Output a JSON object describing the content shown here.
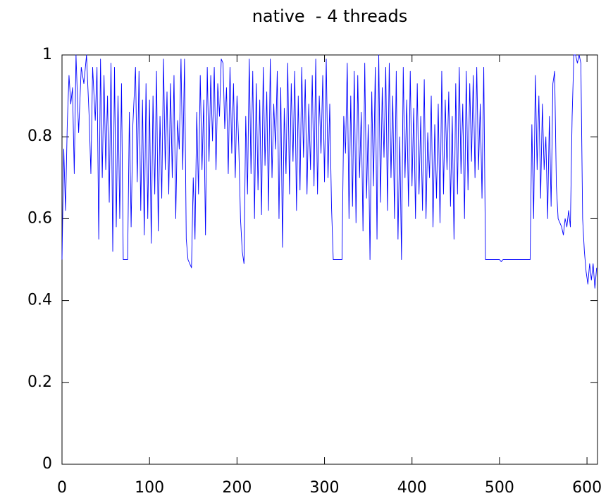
{
  "chart_data": {
    "type": "line",
    "title": "native  - 4 threads",
    "xlim": [
      0,
      612
    ],
    "ylim": [
      0,
      1
    ],
    "xticks": [
      0,
      100,
      200,
      300,
      400,
      500,
      600
    ],
    "yticks": [
      0,
      0.2,
      0.4,
      0.6,
      0.8,
      1
    ],
    "color": "#0000ff",
    "x": [
      0,
      2,
      4,
      6,
      8,
      10,
      12,
      14,
      16,
      19,
      22,
      25,
      28,
      31,
      33,
      35,
      38,
      40,
      42,
      44,
      46,
      48,
      50,
      52,
      54,
      56,
      58,
      60,
      62,
      64,
      66,
      68,
      70,
      75,
      77,
      79,
      81,
      84,
      86,
      88,
      90,
      92,
      94,
      96,
      98,
      100,
      102,
      104,
      106,
      108,
      110,
      112,
      114,
      116,
      118,
      120,
      122,
      124,
      126,
      128,
      130,
      132,
      134,
      136,
      138,
      140,
      142,
      144,
      146,
      148,
      150,
      152,
      154,
      156,
      158,
      160,
      162,
      164,
      166,
      168,
      170,
      172,
      174,
      176,
      178,
      180,
      182,
      184,
      186,
      188,
      190,
      192,
      194,
      196,
      198,
      200,
      202,
      204,
      206,
      208,
      210,
      212,
      214,
      216,
      218,
      220,
      222,
      224,
      226,
      228,
      230,
      232,
      234,
      236,
      238,
      240,
      242,
      244,
      246,
      248,
      250,
      252,
      254,
      256,
      258,
      260,
      262,
      264,
      266,
      268,
      270,
      272,
      274,
      276,
      278,
      280,
      282,
      284,
      286,
      288,
      290,
      292,
      294,
      296,
      298,
      300,
      302,
      304,
      306,
      308,
      310,
      320,
      322,
      324,
      326,
      328,
      330,
      332,
      334,
      336,
      338,
      340,
      342,
      344,
      346,
      348,
      350,
      352,
      354,
      356,
      358,
      360,
      362,
      364,
      366,
      368,
      370,
      372,
      374,
      376,
      378,
      380,
      382,
      384,
      386,
      388,
      390,
      392,
      394,
      396,
      398,
      400,
      402,
      404,
      406,
      408,
      410,
      412,
      414,
      416,
      418,
      420,
      422,
      424,
      426,
      428,
      430,
      432,
      434,
      436,
      438,
      440,
      442,
      444,
      446,
      448,
      450,
      452,
      454,
      456,
      458,
      460,
      462,
      464,
      466,
      468,
      470,
      472,
      474,
      476,
      478,
      480,
      482,
      484,
      500,
      502,
      504,
      520,
      535,
      537,
      539,
      541,
      543,
      545,
      547,
      549,
      551,
      553,
      555,
      557,
      559,
      561,
      563,
      565,
      567,
      569,
      571,
      573,
      575,
      577,
      579,
      581,
      583,
      585,
      587,
      589,
      591,
      593,
      595,
      597,
      599,
      601,
      603,
      605,
      607,
      609,
      611
    ],
    "values": [
      0.5,
      0.77,
      0.62,
      0.83,
      0.95,
      0.88,
      0.92,
      0.71,
      1.0,
      0.81,
      0.97,
      0.93,
      1.0,
      0.85,
      0.71,
      0.97,
      0.84,
      0.97,
      0.55,
      0.99,
      0.7,
      0.95,
      0.72,
      0.9,
      0.64,
      0.98,
      0.52,
      0.97,
      0.58,
      0.9,
      0.6,
      0.93,
      0.5,
      0.5,
      0.86,
      0.58,
      0.83,
      0.97,
      0.69,
      0.96,
      0.62,
      0.89,
      0.56,
      0.93,
      0.6,
      0.89,
      0.54,
      0.9,
      0.66,
      0.96,
      0.57,
      0.85,
      0.65,
      0.99,
      0.72,
      0.91,
      0.66,
      0.93,
      0.7,
      0.95,
      0.6,
      0.84,
      0.77,
      0.99,
      0.72,
      0.99,
      0.55,
      0.5,
      0.49,
      0.48,
      0.7,
      0.55,
      0.86,
      0.66,
      0.95,
      0.72,
      0.89,
      0.56,
      0.97,
      0.74,
      0.95,
      0.79,
      0.97,
      0.72,
      0.93,
      0.85,
      0.99,
      0.98,
      0.82,
      0.92,
      0.71,
      0.97,
      0.76,
      0.93,
      0.7,
      0.9,
      0.78,
      0.6,
      0.52,
      0.49,
      0.85,
      0.66,
      0.99,
      0.71,
      0.96,
      0.6,
      0.93,
      0.67,
      0.89,
      0.61,
      0.97,
      0.73,
      0.91,
      0.62,
      0.99,
      0.7,
      0.88,
      0.77,
      0.96,
      0.6,
      0.92,
      0.53,
      0.87,
      0.71,
      0.98,
      0.66,
      0.93,
      0.74,
      0.96,
      0.62,
      0.9,
      0.67,
      0.97,
      0.75,
      0.94,
      0.66,
      0.88,
      0.72,
      0.95,
      0.68,
      0.99,
      0.66,
      0.9,
      0.76,
      0.95,
      0.69,
      0.99,
      0.7,
      0.88,
      0.63,
      0.5,
      0.5,
      0.85,
      0.76,
      0.98,
      0.6,
      0.9,
      0.63,
      0.96,
      0.59,
      0.95,
      0.7,
      0.86,
      0.57,
      0.98,
      0.65,
      0.83,
      0.5,
      0.91,
      0.68,
      0.97,
      0.55,
      1.0,
      0.64,
      0.92,
      0.75,
      0.97,
      0.62,
      0.98,
      0.7,
      0.9,
      0.6,
      0.96,
      0.55,
      0.8,
      0.5,
      0.97,
      0.7,
      0.89,
      0.63,
      0.96,
      0.68,
      0.87,
      0.6,
      0.93,
      0.66,
      0.85,
      0.62,
      0.94,
      0.6,
      0.81,
      0.7,
      0.9,
      0.58,
      0.83,
      0.65,
      0.88,
      0.59,
      0.96,
      0.66,
      0.89,
      0.72,
      0.91,
      0.63,
      0.85,
      0.55,
      0.93,
      0.66,
      0.97,
      0.71,
      0.88,
      0.6,
      0.96,
      0.67,
      0.93,
      0.74,
      0.95,
      0.7,
      0.97,
      0.72,
      0.88,
      0.65,
      0.97,
      0.5,
      0.5,
      0.495,
      0.5,
      0.5,
      0.5,
      0.83,
      0.6,
      0.95,
      0.72,
      0.9,
      0.65,
      0.88,
      0.72,
      0.8,
      0.6,
      0.85,
      0.63,
      0.93,
      0.96,
      0.68,
      0.6,
      0.59,
      0.58,
      0.56,
      0.6,
      0.58,
      0.62,
      0.58,
      0.85,
      1.0,
      1.0,
      0.98,
      1.0,
      0.98,
      0.6,
      0.52,
      0.47,
      0.44,
      0.49,
      0.45,
      0.49,
      0.43,
      0.48
    ]
  }
}
